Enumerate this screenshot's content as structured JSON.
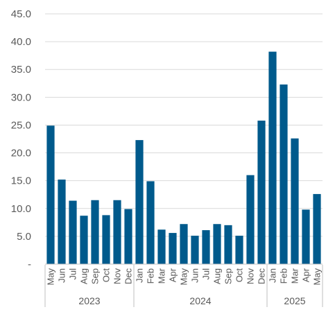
{
  "chart_data": {
    "type": "bar",
    "categories": [
      "May",
      "Jun",
      "Jul",
      "Aug",
      "Sep",
      "Oct",
      "Nov",
      "Dec",
      "Jan",
      "Feb",
      "Mar",
      "Apr",
      "May",
      "Jun",
      "Jul",
      "Aug",
      "Sep",
      "Oct",
      "Nov",
      "Dec",
      "Jan",
      "Feb",
      "Mar",
      "Apr",
      "May"
    ],
    "values": [
      24.9,
      15.2,
      11.4,
      8.7,
      11.5,
      8.8,
      11.5,
      9.9,
      22.3,
      14.9,
      6.2,
      5.6,
      7.2,
      5.1,
      6.1,
      7.2,
      7.0,
      5.1,
      16.0,
      25.8,
      38.2,
      32.3,
      22.6,
      9.8,
      12.6
    ],
    "groups": [
      {
        "label": "2023",
        "start": 0,
        "end": 7
      },
      {
        "label": "2024",
        "start": 8,
        "end": 19
      },
      {
        "label": "2025",
        "start": 20,
        "end": 24
      }
    ],
    "yticks": [
      "-",
      "5.0",
      "10.0",
      "15.0",
      "20.0",
      "25.0",
      "30.0",
      "35.0",
      "40.0",
      "45.0"
    ],
    "ylim": [
      0,
      45
    ],
    "bar_color": "#005A8C",
    "grid": true,
    "title": "",
    "xlabel": "",
    "ylabel": ""
  }
}
